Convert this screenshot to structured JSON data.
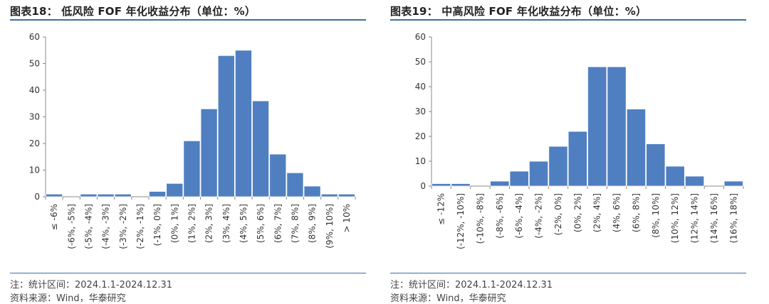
{
  "left": {
    "title": "图表18：  低风险 FOF 年化收益分布（单位：%）",
    "note": "注：统计区间：2024.1.1-2024.12.31",
    "source": "资料来源：Wind，华泰研究"
  },
  "right": {
    "title": "图表19：  中高风险 FOF 年化收益分布（单位：%）",
    "note": "注：统计区间：2024.1.1-2024.12.31",
    "source": "资料来源：Wind，华泰研究"
  },
  "chart_data": [
    {
      "type": "bar",
      "title": "低风险 FOF 年化收益分布（单位：%）",
      "categories": [
        "≤ -6%",
        "(-6%, -5%]",
        "(-5%, -4%]",
        "(-4%, -3%]",
        "(-3%, -2%]",
        "(-2%, -1%]",
        "(-1%, 0%]",
        "(0%, 1%]",
        "(1%, 2%]",
        "(2%, 3%]",
        "(3%, 4%]",
        "(4%, 5%]",
        "(5%, 6%]",
        "(6%, 7%]",
        "(7%, 8%]",
        "(8%, 9%]",
        "(9%, 10%]",
        "> 10%"
      ],
      "values": [
        1,
        0,
        1,
        1,
        1,
        0,
        2,
        5,
        21,
        33,
        53,
        55,
        36,
        16,
        9,
        4,
        1,
        1
      ],
      "ylim": [
        0,
        60
      ],
      "yticks": [
        0,
        10,
        20,
        30,
        40,
        50,
        60
      ],
      "color": "#4f7fc0",
      "grid": false
    },
    {
      "type": "bar",
      "title": "中高风险 FOF 年化收益分布（单位：%）",
      "categories": [
        "≤ -12%",
        "(-12%, -10%]",
        "(-10%, -8%]",
        "(-8%, -6%]",
        "(-6%, -4%]",
        "(-4%, -2%]",
        "(-2%, 0%]",
        "(0%, 2%]",
        "(2%, 4%]",
        "(4%, 6%]",
        "(6%, 8%]",
        "(8%, 10%]",
        "(10%, 12%]",
        "(12%, 14%]",
        "(14%, 16%]",
        "(16%, 18%]"
      ],
      "values": [
        1,
        1,
        0,
        2,
        6,
        10,
        16,
        22,
        48,
        48,
        31,
        17,
        8,
        4,
        0,
        2
      ],
      "ylim": [
        0,
        60
      ],
      "yticks": [
        0,
        10,
        20,
        30,
        40,
        50,
        60
      ],
      "color": "#4f7fc0",
      "grid": false
    }
  ]
}
